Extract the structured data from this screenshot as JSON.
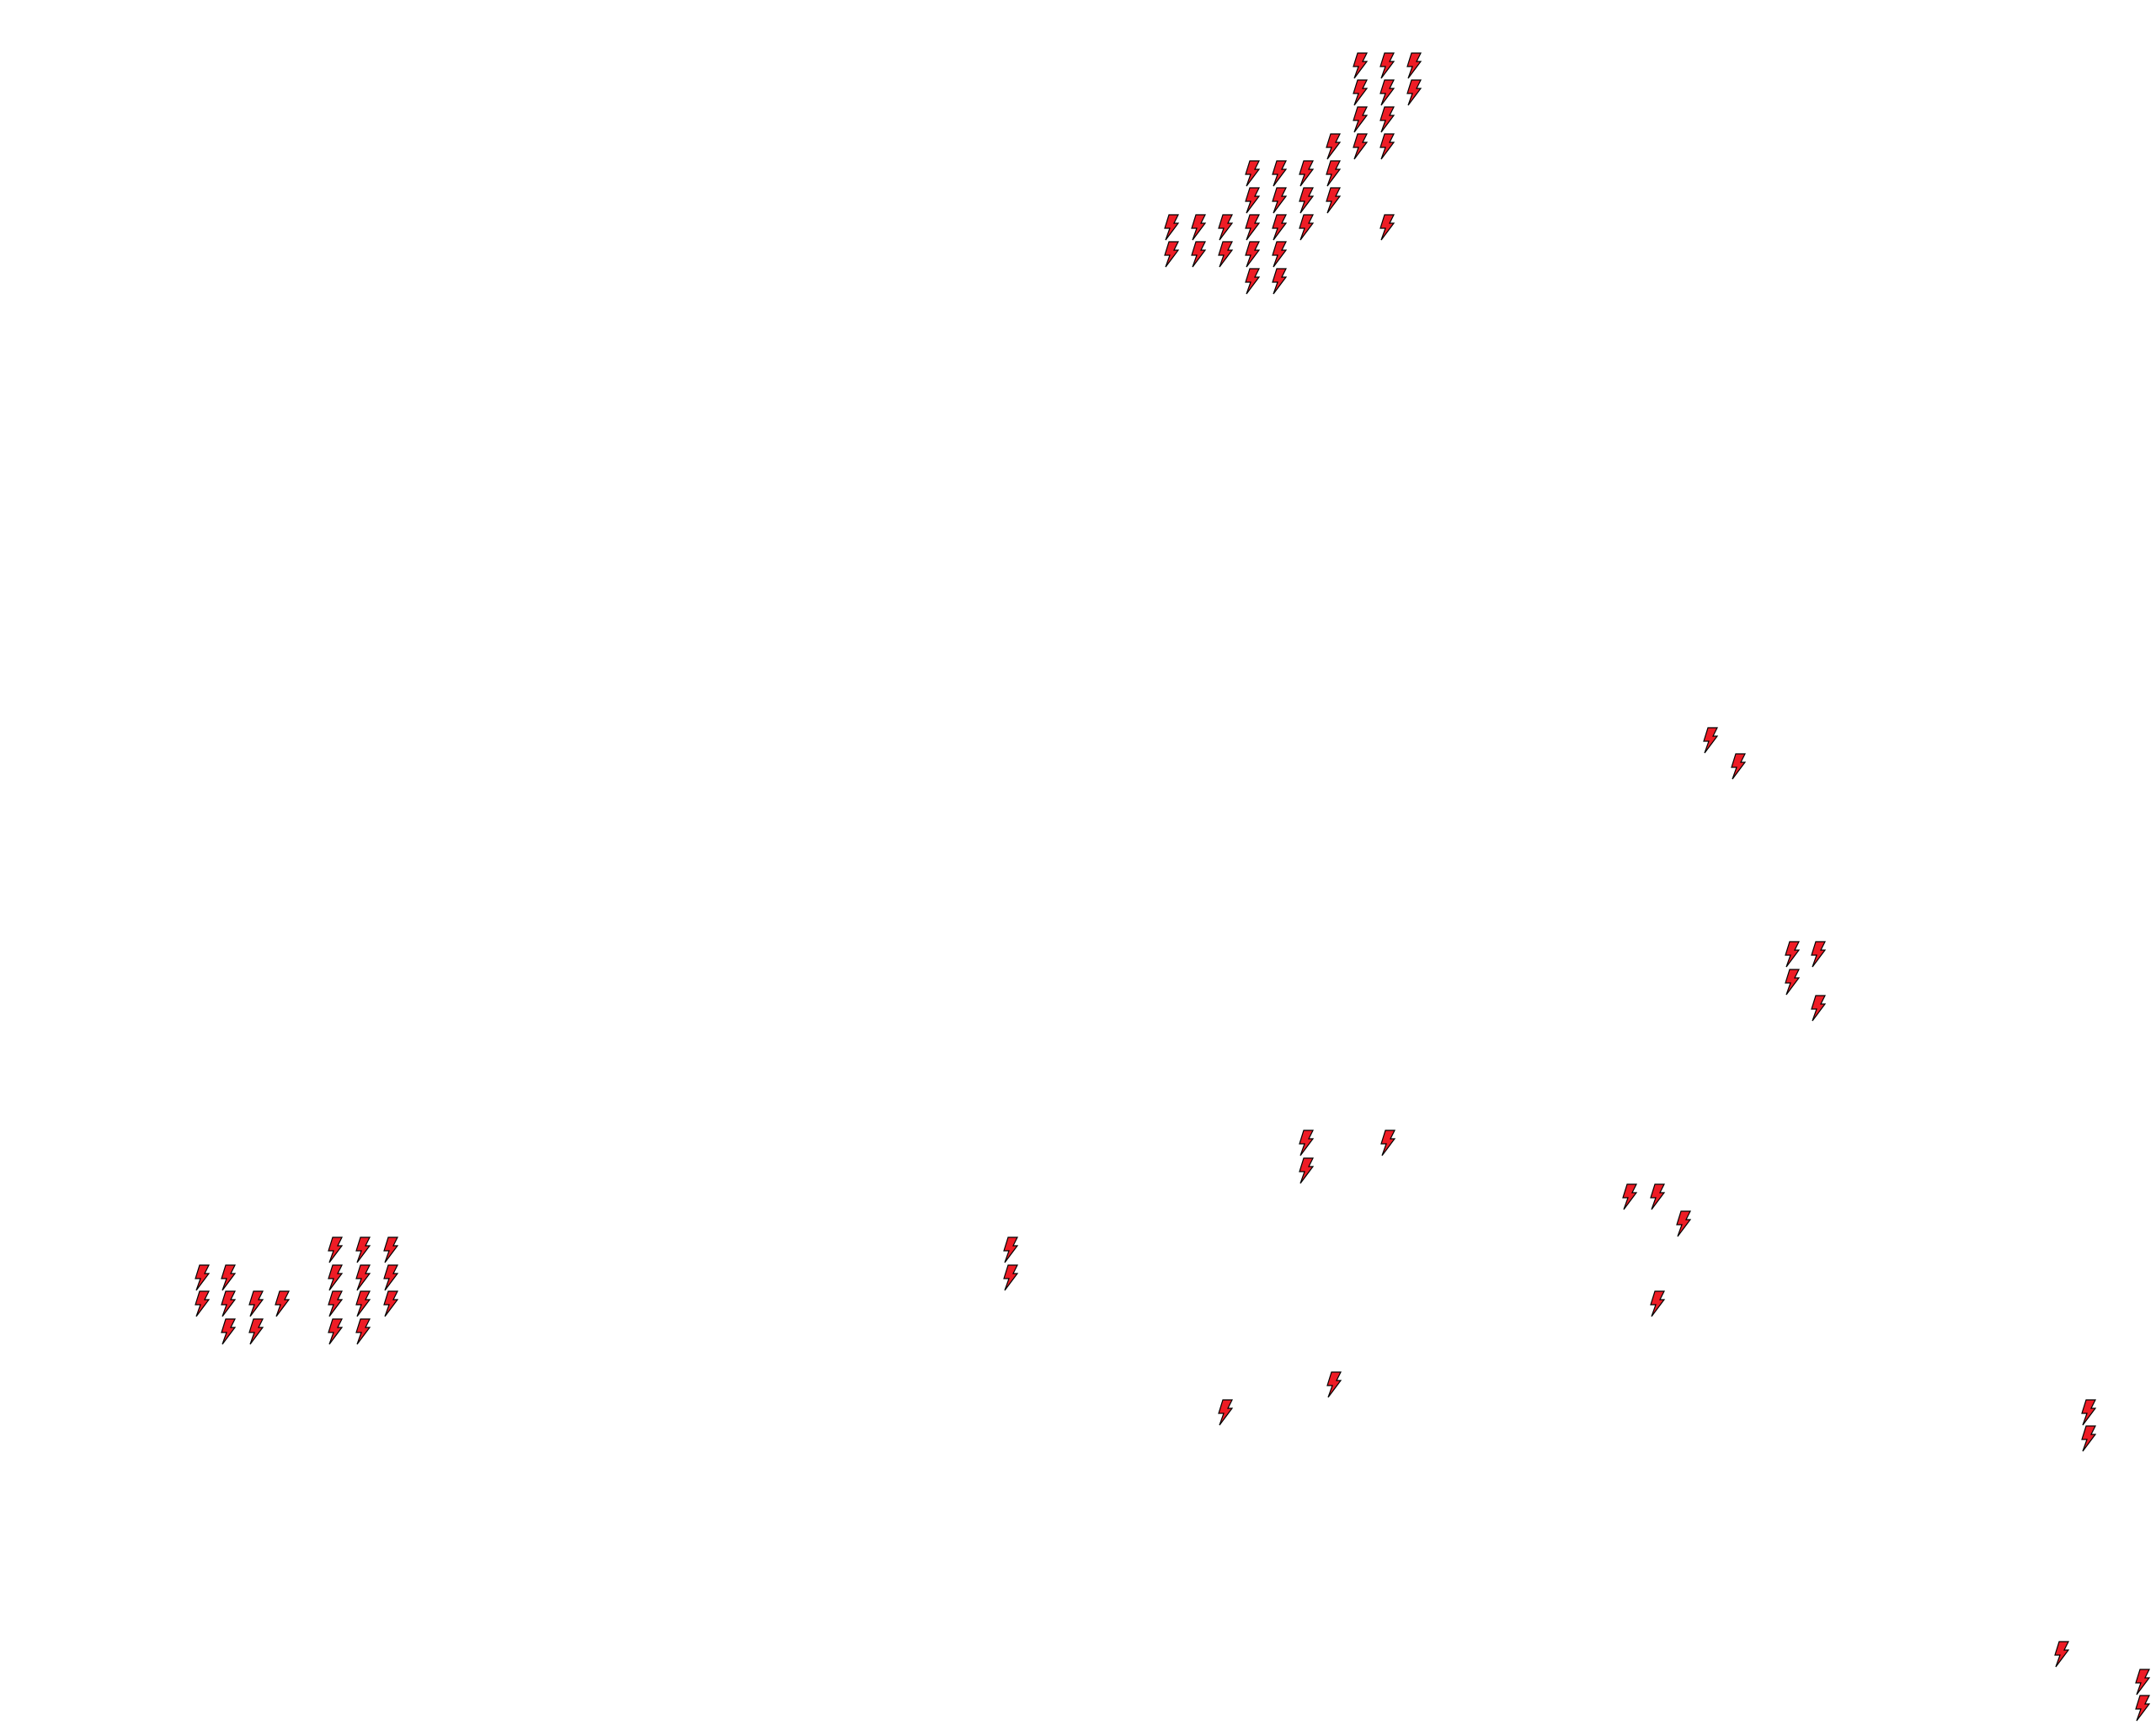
{
  "map": {
    "background_color": "#ffffff",
    "marker": {
      "icon": "lightning-bolt-icon",
      "fill_color": "#ee1c25",
      "stroke_color": "#000000"
    }
  }
}
